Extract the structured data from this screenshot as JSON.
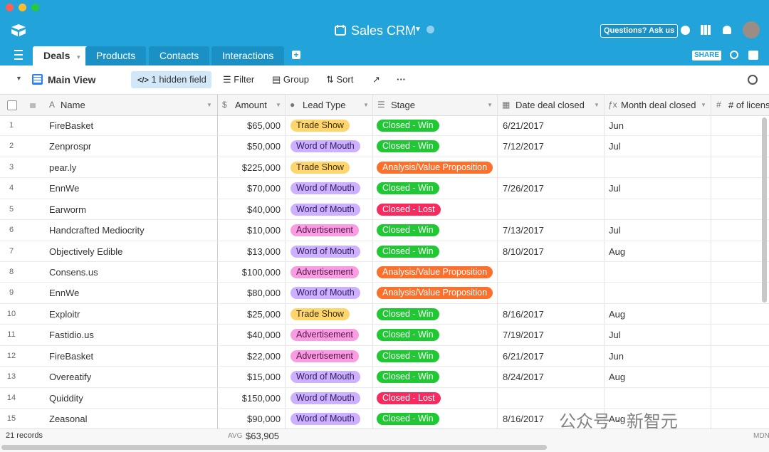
{
  "window": {
    "title": "Sales CRM",
    "help_button": "Questions? Ask us",
    "share_button": "SHARE"
  },
  "tabs": [
    "Deals",
    "Products",
    "Contacts",
    "Interactions"
  ],
  "toolbar": {
    "view": "Main View",
    "hidden": "1 hidden field",
    "filter": "Filter",
    "group": "Group",
    "sort": "Sort"
  },
  "table": {
    "columns": [
      "Name",
      "Amount",
      "Lead Type",
      "Stage",
      "Date deal closed",
      "Month deal closed",
      "# of licens"
    ],
    "rows": [
      [
        "1",
        "FireBasket",
        "$65,000",
        "Trade Show",
        "Closed - Win",
        "6/21/2017",
        "Jun"
      ],
      [
        "2",
        "Zenprospr",
        "$50,000",
        "Word of Mouth",
        "Closed - Win",
        "7/12/2017",
        "Jul"
      ],
      [
        "3",
        "pear.ly",
        "$225,000",
        "Trade Show",
        "Analysis/Value Proposition",
        null,
        null
      ],
      [
        "4",
        "EnnWe",
        "$70,000",
        "Word of Mouth",
        "Closed - Win",
        "7/26/2017",
        "Jul"
      ],
      [
        "5",
        "Earworm",
        "$40,000",
        "Word of Mouth",
        "Closed - Lost",
        null,
        null
      ],
      [
        "6",
        "Handcrafted Mediocrity",
        "$10,000",
        "Advertisement",
        "Closed - Win",
        "7/13/2017",
        "Jul"
      ],
      [
        "7",
        "Objectively Edible",
        "$13,000",
        "Word of Mouth",
        "Closed - Win",
        "8/10/2017",
        "Aug"
      ],
      [
        "8",
        "Consens.us",
        "$100,000",
        "Advertisement",
        "Analysis/Value Proposition",
        null,
        null
      ],
      [
        "9",
        "EnnWe",
        "$80,000",
        "Word of Mouth",
        "Analysis/Value Proposition",
        null,
        null
      ],
      [
        "10",
        "Exploitr",
        "$25,000",
        "Trade Show",
        "Closed - Win",
        "8/16/2017",
        "Aug"
      ],
      [
        "11",
        "Fastidio.us",
        "$40,000",
        "Advertisement",
        "Closed - Win",
        "7/19/2017",
        "Jul"
      ],
      [
        "12",
        "FireBasket",
        "$22,000",
        "Advertisement",
        "Closed - Win",
        "6/21/2017",
        "Jun"
      ],
      [
        "13",
        "Overeatify",
        "$15,000",
        "Word of Mouth",
        "Closed - Win",
        "8/24/2017",
        "Aug"
      ],
      [
        "14",
        "Quiddity",
        "$150,000",
        "Word of Mouth",
        "Closed - Lost",
        null,
        null
      ],
      [
        "15",
        "Zeasonal",
        "$90,000",
        "Word of Mouth",
        "Closed - Win",
        "8/16/2017",
        "Aug"
      ]
    ]
  },
  "pill_colors": {
    "Trade Show": [
      "#ffd66e",
      "#3a2e00"
    ],
    "Word of Mouth": [
      "#cdb0ff",
      "#2d1a5e"
    ],
    "Advertisement": [
      "#f99de2",
      "#5a1048"
    ],
    "Closed - Win": [
      "#20c933",
      "#ffffff"
    ],
    "Closed - Lost": [
      "#f82b60",
      "#ffffff"
    ],
    "Analysis/Value Proposition": [
      "#ff6f2c",
      "#ffffff"
    ]
  },
  "footer": {
    "records": "21 records",
    "summary_label": "AVG",
    "summary_value": "$63,905",
    "next_summary": "MDN"
  },
  "watermark": "公众号 · 新智元"
}
